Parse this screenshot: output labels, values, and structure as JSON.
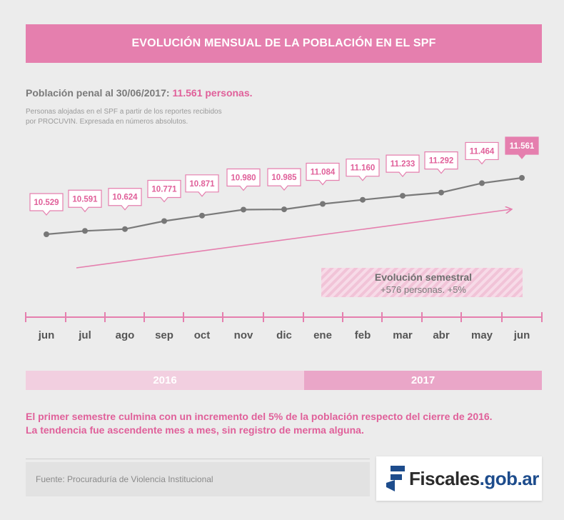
{
  "header": {
    "title": "EVOLUCIÓN MENSUAL DE LA POBLACIÓN EN EL SPF"
  },
  "subtitle": {
    "label": "Población penal al 30/06/2017:",
    "highlight": "11.561 personas."
  },
  "note": {
    "line1": "Personas alojadas en el SPF a partir de los reportes recibidos",
    "line2": "por PROCUVIN. Expresada en números absolutos."
  },
  "chart_data": {
    "type": "line",
    "categories": [
      "jun",
      "jul",
      "ago",
      "sep",
      "oct",
      "nov",
      "dic",
      "ene",
      "feb",
      "mar",
      "abr",
      "may",
      "jun"
    ],
    "values": [
      10529,
      10591,
      10624,
      10771,
      10871,
      10980,
      10985,
      11084,
      11160,
      11233,
      11292,
      11464,
      11561
    ],
    "value_labels": [
      "10.529",
      "10.591",
      "10.624",
      "10.771",
      "10.871",
      "10.980",
      "10.985",
      "11.084",
      "11.160",
      "11.233",
      "11.292",
      "11.464",
      "11.561"
    ],
    "years": [
      "2016",
      "2017"
    ],
    "colors": {
      "line": "#7a7a7a",
      "point": "#777777",
      "label_border": "#e57fae",
      "label_text": "#e0609a",
      "highlight_fill": "#e57fae",
      "trend": "#e57fae"
    },
    "annotation": {
      "title": "Evolución semestral",
      "text": "+576 personas. +5%"
    }
  },
  "summary": {
    "line1": "El primer semestre culmina con un incremento del 5% de la población respecto del cierre de 2016.",
    "line2": "La tendencia fue ascendente mes a mes, sin registro de merma alguna."
  },
  "footer": {
    "source": "Fuente: Procuraduría de Violencia Institucional",
    "logo_main": "Fiscales",
    "logo_domain": ".gob.ar"
  }
}
